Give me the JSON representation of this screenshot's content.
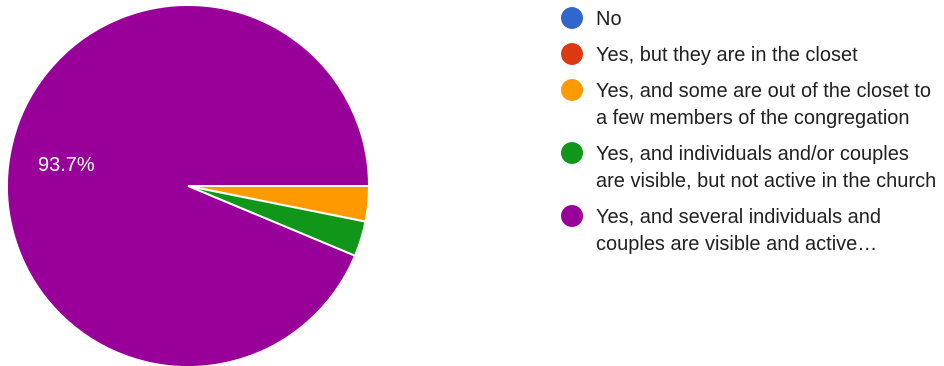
{
  "chart_data": {
    "type": "pie",
    "slices": [
      {
        "label": "No",
        "value": 0,
        "color": "#3366cc"
      },
      {
        "label": "Yes, but they are in the closet",
        "value": 0,
        "color": "#dc3912"
      },
      {
        "label": "Yes, and some are out of the closet to a few members of the congregation",
        "value": 3.15,
        "color": "#ff9900"
      },
      {
        "label": "Yes, and individuals and/or couples are visible, but not active in the church",
        "value": 3.15,
        "color": "#109618"
      },
      {
        "label": "Yes, and several individuals and couples are visible and active…",
        "value": 93.7,
        "color": "#990099"
      }
    ],
    "data_labels": [
      "93.7%"
    ],
    "legend_position": "right"
  }
}
